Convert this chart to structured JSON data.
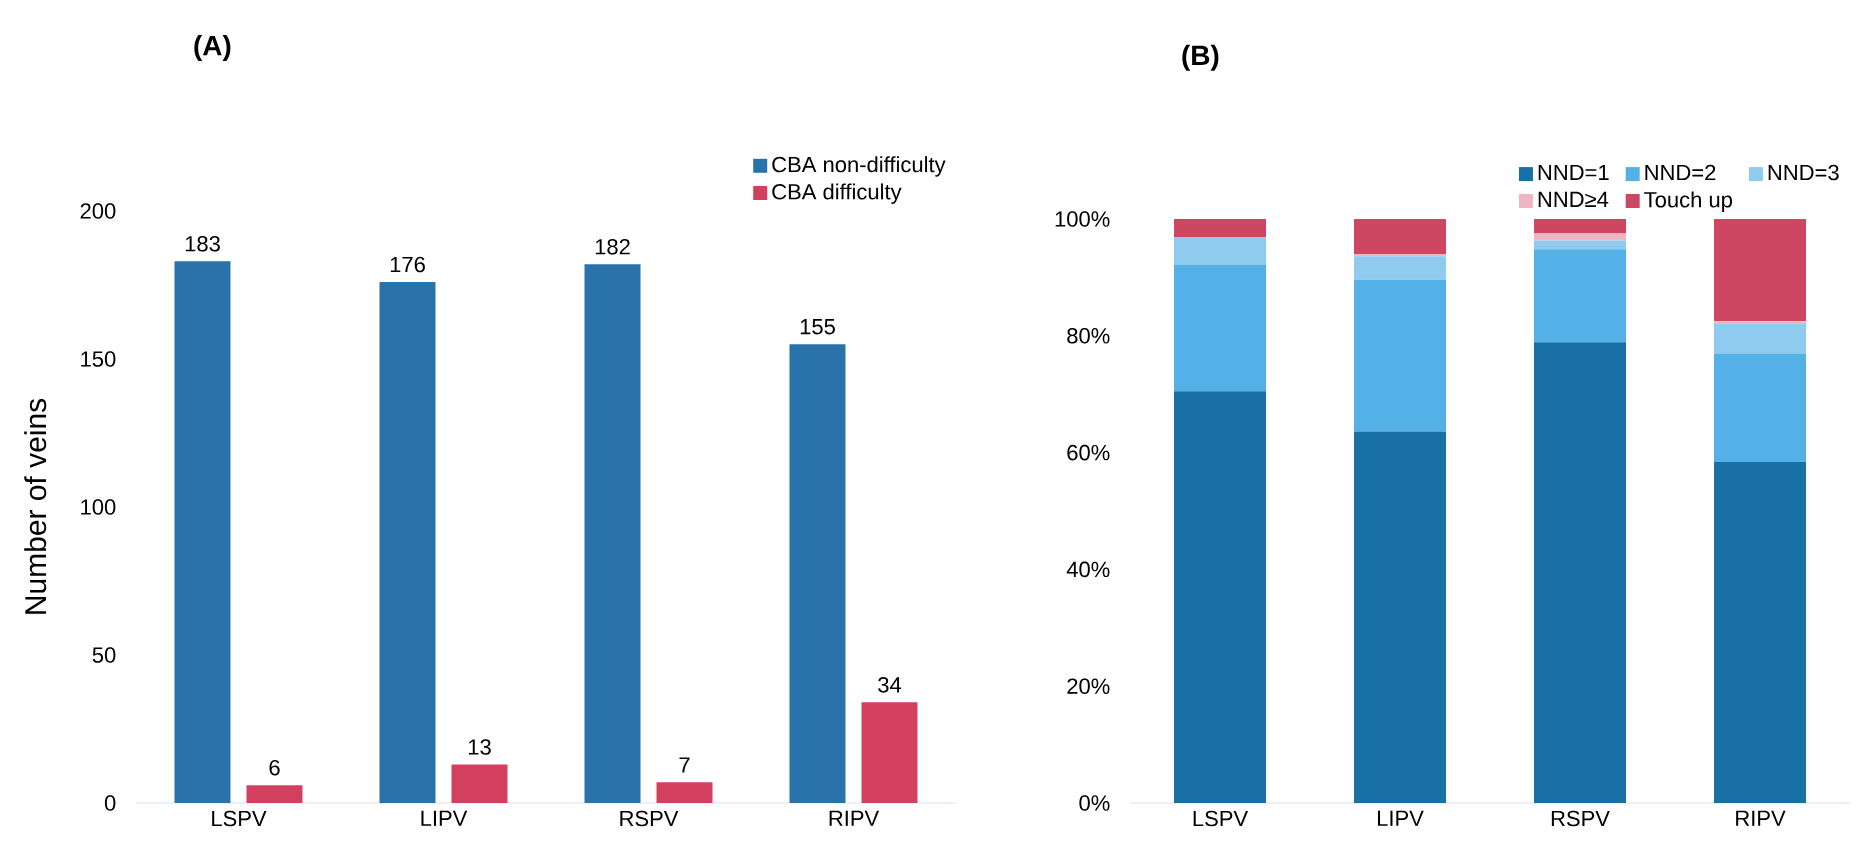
{
  "chart_data": [
    {
      "type": "bar",
      "title": "(A)",
      "ylabel": "Number of veins",
      "categories": [
        "LSPV",
        "LIPV",
        "RSPV",
        "RIPV"
      ],
      "series": [
        {
          "name": "CBA non-difficulty",
          "color": "#2a72aa",
          "values": [
            183,
            176,
            182,
            155
          ]
        },
        {
          "name": "CBA difficulty",
          "color": "#d3405f",
          "values": [
            6,
            13,
            7,
            34
          ]
        }
      ],
      "ylim": [
        0,
        200
      ],
      "yticks": [
        0,
        50,
        100,
        150,
        200
      ],
      "data_labels": true,
      "legend": "top right",
      "grid": false
    },
    {
      "type": "bar",
      "title": "(B)",
      "stacked": true,
      "categories": [
        "LSPV",
        "LIPV",
        "RSPV",
        "RIPV"
      ],
      "series": [
        {
          "name": "NND=1",
          "color": "#1870a6",
          "values": [
            70.5,
            63.6,
            78.9,
            58.4
          ]
        },
        {
          "name": "NND=2",
          "color": "#53b1e8",
          "values": [
            21.7,
            26.0,
            15.9,
            18.5
          ]
        },
        {
          "name": "NND=3",
          "color": "#8ecbef",
          "values": [
            4.7,
            4.0,
            1.5,
            5.1
          ]
        },
        {
          "name": "NND≥4",
          "color": "#f0b4c2",
          "values": [
            0,
            0.4,
            1.2,
            0.5
          ]
        },
        {
          "name": "Touch up",
          "color": "#cd4662",
          "values": [
            3.1,
            6.0,
            2.5,
            17.5
          ]
        }
      ],
      "ylim": [
        0,
        100
      ],
      "yticks": [
        {
          "value": 0,
          "label": "0%"
        },
        {
          "value": 20,
          "label": "20%"
        },
        {
          "value": 40,
          "label": "40%"
        },
        {
          "value": 60,
          "label": "60%"
        },
        {
          "value": 80,
          "label": "80%"
        },
        {
          "value": 100,
          "label": "100%"
        }
      ],
      "legend": "top right",
      "grid": false
    }
  ]
}
